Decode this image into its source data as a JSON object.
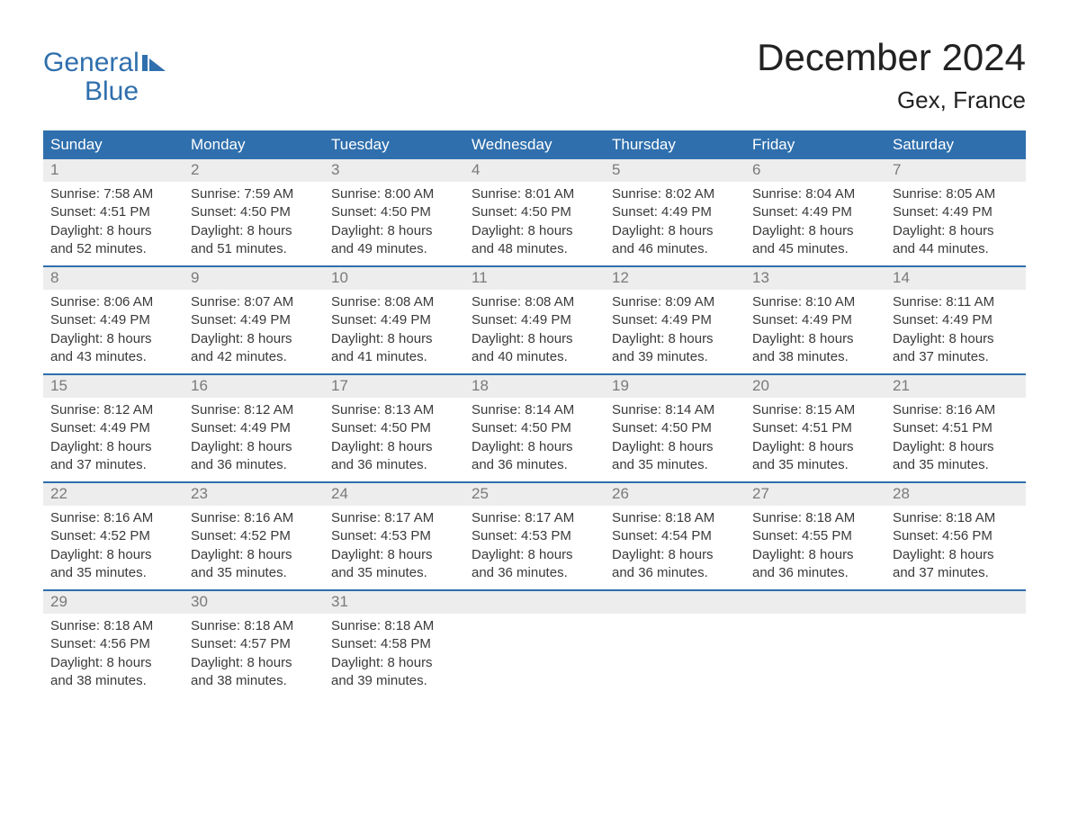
{
  "logo": {
    "line1": "General",
    "line2": "Blue",
    "color": "#2f6fad"
  },
  "title": "December 2024",
  "location": "Gex, France",
  "style": {
    "header_bg": "#2f6fad",
    "header_text": "#ffffff",
    "daynum_bg": "#ededed",
    "daynum_text": "#7a7a7a",
    "week_border": "#2f6fad",
    "body_text": "#3a3a3a",
    "page_bg": "#ffffff",
    "title_fontsize": 42,
    "location_fontsize": 26,
    "weekday_fontsize": 17,
    "body_fontsize": 15
  },
  "weekdays": [
    "Sunday",
    "Monday",
    "Tuesday",
    "Wednesday",
    "Thursday",
    "Friday",
    "Saturday"
  ],
  "weeks": [
    [
      {
        "n": "1",
        "sunrise": "7:58 AM",
        "sunset": "4:51 PM",
        "daylight": "8 hours and 52 minutes."
      },
      {
        "n": "2",
        "sunrise": "7:59 AM",
        "sunset": "4:50 PM",
        "daylight": "8 hours and 51 minutes."
      },
      {
        "n": "3",
        "sunrise": "8:00 AM",
        "sunset": "4:50 PM",
        "daylight": "8 hours and 49 minutes."
      },
      {
        "n": "4",
        "sunrise": "8:01 AM",
        "sunset": "4:50 PM",
        "daylight": "8 hours and 48 minutes."
      },
      {
        "n": "5",
        "sunrise": "8:02 AM",
        "sunset": "4:49 PM",
        "daylight": "8 hours and 46 minutes."
      },
      {
        "n": "6",
        "sunrise": "8:04 AM",
        "sunset": "4:49 PM",
        "daylight": "8 hours and 45 minutes."
      },
      {
        "n": "7",
        "sunrise": "8:05 AM",
        "sunset": "4:49 PM",
        "daylight": "8 hours and 44 minutes."
      }
    ],
    [
      {
        "n": "8",
        "sunrise": "8:06 AM",
        "sunset": "4:49 PM",
        "daylight": "8 hours and 43 minutes."
      },
      {
        "n": "9",
        "sunrise": "8:07 AM",
        "sunset": "4:49 PM",
        "daylight": "8 hours and 42 minutes."
      },
      {
        "n": "10",
        "sunrise": "8:08 AM",
        "sunset": "4:49 PM",
        "daylight": "8 hours and 41 minutes."
      },
      {
        "n": "11",
        "sunrise": "8:08 AM",
        "sunset": "4:49 PM",
        "daylight": "8 hours and 40 minutes."
      },
      {
        "n": "12",
        "sunrise": "8:09 AM",
        "sunset": "4:49 PM",
        "daylight": "8 hours and 39 minutes."
      },
      {
        "n": "13",
        "sunrise": "8:10 AM",
        "sunset": "4:49 PM",
        "daylight": "8 hours and 38 minutes."
      },
      {
        "n": "14",
        "sunrise": "8:11 AM",
        "sunset": "4:49 PM",
        "daylight": "8 hours and 37 minutes."
      }
    ],
    [
      {
        "n": "15",
        "sunrise": "8:12 AM",
        "sunset": "4:49 PM",
        "daylight": "8 hours and 37 minutes."
      },
      {
        "n": "16",
        "sunrise": "8:12 AM",
        "sunset": "4:49 PM",
        "daylight": "8 hours and 36 minutes."
      },
      {
        "n": "17",
        "sunrise": "8:13 AM",
        "sunset": "4:50 PM",
        "daylight": "8 hours and 36 minutes."
      },
      {
        "n": "18",
        "sunrise": "8:14 AM",
        "sunset": "4:50 PM",
        "daylight": "8 hours and 36 minutes."
      },
      {
        "n": "19",
        "sunrise": "8:14 AM",
        "sunset": "4:50 PM",
        "daylight": "8 hours and 35 minutes."
      },
      {
        "n": "20",
        "sunrise": "8:15 AM",
        "sunset": "4:51 PM",
        "daylight": "8 hours and 35 minutes."
      },
      {
        "n": "21",
        "sunrise": "8:16 AM",
        "sunset": "4:51 PM",
        "daylight": "8 hours and 35 minutes."
      }
    ],
    [
      {
        "n": "22",
        "sunrise": "8:16 AM",
        "sunset": "4:52 PM",
        "daylight": "8 hours and 35 minutes."
      },
      {
        "n": "23",
        "sunrise": "8:16 AM",
        "sunset": "4:52 PM",
        "daylight": "8 hours and 35 minutes."
      },
      {
        "n": "24",
        "sunrise": "8:17 AM",
        "sunset": "4:53 PM",
        "daylight": "8 hours and 35 minutes."
      },
      {
        "n": "25",
        "sunrise": "8:17 AM",
        "sunset": "4:53 PM",
        "daylight": "8 hours and 36 minutes."
      },
      {
        "n": "26",
        "sunrise": "8:18 AM",
        "sunset": "4:54 PM",
        "daylight": "8 hours and 36 minutes."
      },
      {
        "n": "27",
        "sunrise": "8:18 AM",
        "sunset": "4:55 PM",
        "daylight": "8 hours and 36 minutes."
      },
      {
        "n": "28",
        "sunrise": "8:18 AM",
        "sunset": "4:56 PM",
        "daylight": "8 hours and 37 minutes."
      }
    ],
    [
      {
        "n": "29",
        "sunrise": "8:18 AM",
        "sunset": "4:56 PM",
        "daylight": "8 hours and 38 minutes."
      },
      {
        "n": "30",
        "sunrise": "8:18 AM",
        "sunset": "4:57 PM",
        "daylight": "8 hours and 38 minutes."
      },
      {
        "n": "31",
        "sunrise": "8:18 AM",
        "sunset": "4:58 PM",
        "daylight": "8 hours and 39 minutes."
      },
      null,
      null,
      null,
      null
    ]
  ],
  "labels": {
    "sunrise": "Sunrise: ",
    "sunset": "Sunset: ",
    "daylight": "Daylight: "
  }
}
